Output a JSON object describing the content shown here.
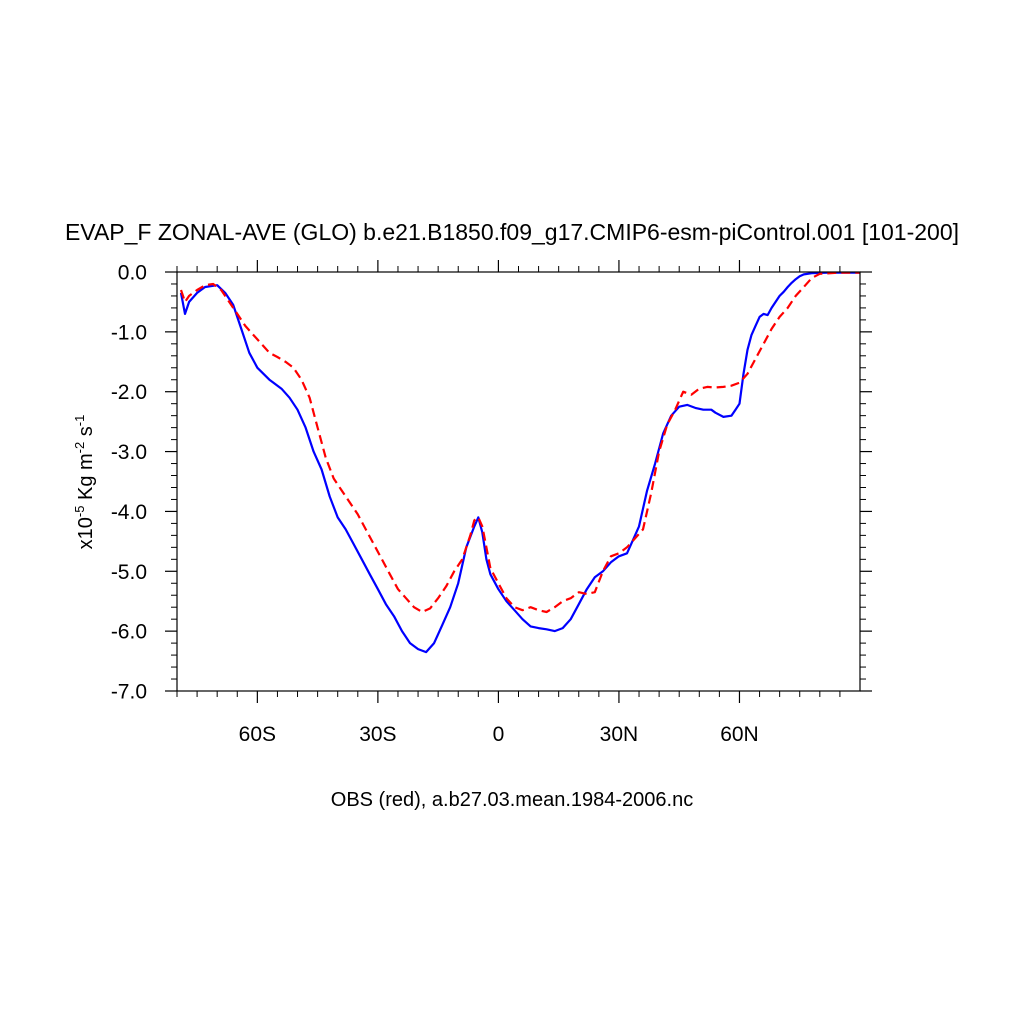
{
  "chart_data": {
    "type": "line",
    "title": "EVAP_F ZONAL-AVE (GLO) b.e21.B1850.f09_g17.CMIP6-esm-piControl.001 [101-200]",
    "subtitle": "OBS (red), a.b27.03.mean.1984-2006.nc",
    "ylabel": {
      "prefix": "x10",
      "exp1": "-5",
      "mid": " Kg m",
      "exp2": "-2",
      "mid2": " s",
      "exp3": "-1"
    },
    "xlim": [
      -80,
      90
    ],
    "ylim": [
      -7,
      0
    ],
    "xticks": [
      {
        "value": -60,
        "label": "60S"
      },
      {
        "value": -30,
        "label": "30S"
      },
      {
        "value": 0,
        "label": "0"
      },
      {
        "value": 30,
        "label": "30N"
      },
      {
        "value": 60,
        "label": "60N"
      }
    ],
    "yticks": [
      {
        "value": 0,
        "label": "0.0"
      },
      {
        "value": -1,
        "label": "-1.0"
      },
      {
        "value": -2,
        "label": "-2.0"
      },
      {
        "value": -3,
        "label": "-3.0"
      },
      {
        "value": -4,
        "label": "-4.0"
      },
      {
        "value": -5,
        "label": "-5.0"
      },
      {
        "value": -6,
        "label": "-6.0"
      },
      {
        "value": -7,
        "label": "-7.0"
      }
    ],
    "series": [
      {
        "color": "#0000ff",
        "dash": "solid",
        "points": [
          [
            -79,
            -0.35
          ],
          [
            -78,
            -0.7
          ],
          [
            -77,
            -0.5
          ],
          [
            -75,
            -0.35
          ],
          [
            -73,
            -0.25
          ],
          [
            -70,
            -0.22
          ],
          [
            -68,
            -0.35
          ],
          [
            -66,
            -0.55
          ],
          [
            -64,
            -0.95
          ],
          [
            -62,
            -1.35
          ],
          [
            -60,
            -1.6
          ],
          [
            -57,
            -1.8
          ],
          [
            -54,
            -1.95
          ],
          [
            -52,
            -2.1
          ],
          [
            -50,
            -2.3
          ],
          [
            -48,
            -2.6
          ],
          [
            -46,
            -3.0
          ],
          [
            -44,
            -3.3
          ],
          [
            -42,
            -3.75
          ],
          [
            -40,
            -4.1
          ],
          [
            -38,
            -4.3
          ],
          [
            -36,
            -4.55
          ],
          [
            -34,
            -4.8
          ],
          [
            -32,
            -5.05
          ],
          [
            -30,
            -5.3
          ],
          [
            -28,
            -5.55
          ],
          [
            -26,
            -5.75
          ],
          [
            -24,
            -6.0
          ],
          [
            -22,
            -6.2
          ],
          [
            -20,
            -6.3
          ],
          [
            -18,
            -6.35
          ],
          [
            -16,
            -6.2
          ],
          [
            -14,
            -5.9
          ],
          [
            -12,
            -5.6
          ],
          [
            -10,
            -5.2
          ],
          [
            -8,
            -4.6
          ],
          [
            -6,
            -4.25
          ],
          [
            -5,
            -4.1
          ],
          [
            -4,
            -4.35
          ],
          [
            -3,
            -4.8
          ],
          [
            -2,
            -5.05
          ],
          [
            0,
            -5.3
          ],
          [
            2,
            -5.5
          ],
          [
            4,
            -5.65
          ],
          [
            6,
            -5.8
          ],
          [
            8,
            -5.92
          ],
          [
            10,
            -5.95
          ],
          [
            12,
            -5.97
          ],
          [
            14,
            -6.0
          ],
          [
            16,
            -5.95
          ],
          [
            18,
            -5.8
          ],
          [
            20,
            -5.55
          ],
          [
            22,
            -5.3
          ],
          [
            24,
            -5.1
          ],
          [
            26,
            -5.0
          ],
          [
            28,
            -4.85
          ],
          [
            30,
            -4.75
          ],
          [
            32,
            -4.7
          ],
          [
            33,
            -4.55
          ],
          [
            35,
            -4.25
          ],
          [
            37,
            -3.65
          ],
          [
            39,
            -3.2
          ],
          [
            41,
            -2.7
          ],
          [
            43,
            -2.4
          ],
          [
            45,
            -2.25
          ],
          [
            47,
            -2.22
          ],
          [
            49,
            -2.27
          ],
          [
            51,
            -2.3
          ],
          [
            53,
            -2.3
          ],
          [
            54,
            -2.35
          ],
          [
            56,
            -2.42
          ],
          [
            58,
            -2.4
          ],
          [
            59,
            -2.3
          ],
          [
            60,
            -2.2
          ],
          [
            61,
            -1.7
          ],
          [
            62,
            -1.3
          ],
          [
            63,
            -1.05
          ],
          [
            64,
            -0.9
          ],
          [
            65,
            -0.75
          ],
          [
            66,
            -0.7
          ],
          [
            67,
            -0.72
          ],
          [
            68,
            -0.6
          ],
          [
            69,
            -0.5
          ],
          [
            70,
            -0.4
          ],
          [
            71,
            -0.33
          ],
          [
            72,
            -0.25
          ],
          [
            73,
            -0.18
          ],
          [
            74,
            -0.12
          ],
          [
            75,
            -0.07
          ],
          [
            76,
            -0.04
          ],
          [
            78,
            -0.02
          ],
          [
            82,
            -0.01
          ],
          [
            90,
            -0.01
          ]
        ]
      },
      {
        "color": "#ff0000",
        "dash": "dashed",
        "points": [
          [
            -79,
            -0.3
          ],
          [
            -78,
            -0.5
          ],
          [
            -77,
            -0.4
          ],
          [
            -75,
            -0.3
          ],
          [
            -73,
            -0.22
          ],
          [
            -71,
            -0.2
          ],
          [
            -69,
            -0.3
          ],
          [
            -67,
            -0.5
          ],
          [
            -65,
            -0.7
          ],
          [
            -63,
            -0.9
          ],
          [
            -61,
            -1.05
          ],
          [
            -59,
            -1.2
          ],
          [
            -57,
            -1.35
          ],
          [
            -55,
            -1.42
          ],
          [
            -53,
            -1.5
          ],
          [
            -51,
            -1.6
          ],
          [
            -49,
            -1.8
          ],
          [
            -47,
            -2.1
          ],
          [
            -45,
            -2.6
          ],
          [
            -43,
            -3.1
          ],
          [
            -41,
            -3.45
          ],
          [
            -39,
            -3.65
          ],
          [
            -37,
            -3.85
          ],
          [
            -35,
            -4.05
          ],
          [
            -33,
            -4.3
          ],
          [
            -31,
            -4.55
          ],
          [
            -29,
            -4.8
          ],
          [
            -27,
            -5.05
          ],
          [
            -25,
            -5.3
          ],
          [
            -23,
            -5.45
          ],
          [
            -21,
            -5.6
          ],
          [
            -19,
            -5.68
          ],
          [
            -17,
            -5.62
          ],
          [
            -15,
            -5.45
          ],
          [
            -13,
            -5.25
          ],
          [
            -11,
            -5.0
          ],
          [
            -9,
            -4.8
          ],
          [
            -7,
            -4.4
          ],
          [
            -6,
            -4.15
          ],
          [
            -5,
            -4.1
          ],
          [
            -4,
            -4.25
          ],
          [
            -3,
            -4.6
          ],
          [
            -2,
            -4.95
          ],
          [
            0,
            -5.2
          ],
          [
            2,
            -5.45
          ],
          [
            4,
            -5.6
          ],
          [
            6,
            -5.65
          ],
          [
            8,
            -5.6
          ],
          [
            10,
            -5.65
          ],
          [
            12,
            -5.68
          ],
          [
            14,
            -5.6
          ],
          [
            16,
            -5.5
          ],
          [
            18,
            -5.45
          ],
          [
            20,
            -5.35
          ],
          [
            22,
            -5.38
          ],
          [
            24,
            -5.35
          ],
          [
            26,
            -5.0
          ],
          [
            28,
            -4.75
          ],
          [
            30,
            -4.7
          ],
          [
            32,
            -4.6
          ],
          [
            34,
            -4.45
          ],
          [
            36,
            -4.3
          ],
          [
            38,
            -3.7
          ],
          [
            40,
            -3.0
          ],
          [
            42,
            -2.55
          ],
          [
            44,
            -2.3
          ],
          [
            46,
            -2.0
          ],
          [
            48,
            -2.05
          ],
          [
            50,
            -1.95
          ],
          [
            52,
            -1.92
          ],
          [
            54,
            -1.93
          ],
          [
            56,
            -1.92
          ],
          [
            58,
            -1.9
          ],
          [
            60,
            -1.85
          ],
          [
            62,
            -1.7
          ],
          [
            64,
            -1.45
          ],
          [
            66,
            -1.2
          ],
          [
            68,
            -0.95
          ],
          [
            70,
            -0.75
          ],
          [
            72,
            -0.6
          ],
          [
            74,
            -0.4
          ],
          [
            76,
            -0.25
          ],
          [
            78,
            -0.1
          ],
          [
            80,
            -0.03
          ],
          [
            85,
            -0.01
          ],
          [
            90,
            -0.01
          ]
        ]
      }
    ]
  }
}
